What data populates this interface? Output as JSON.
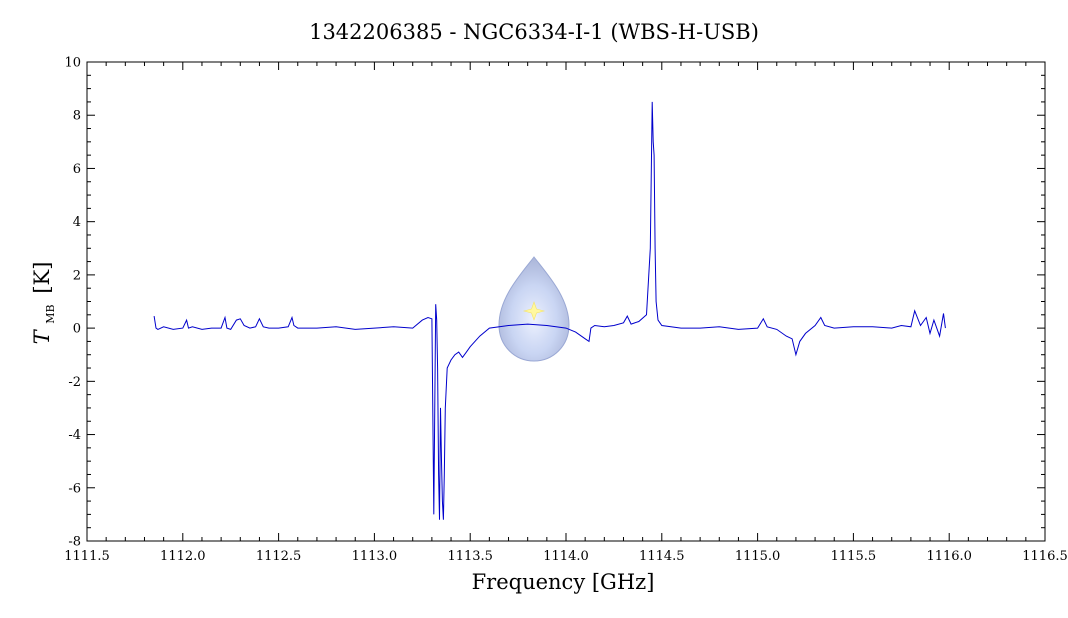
{
  "chart_data": {
    "type": "line",
    "title": "1342206385 - NGC6334-I-1 (WBS-H-USB)",
    "xlabel": "Frequency [GHz]",
    "ylabel_main": "T",
    "ylabel_sub": "MB",
    "ylabel_unit": "[K]",
    "xlim": [
      1111.5,
      1116.5
    ],
    "ylim": [
      -8,
      10
    ],
    "x_ticks": [
      "1111.5",
      "1112.0",
      "1112.5",
      "1113.0",
      "1113.5",
      "1114.0",
      "1114.5",
      "1115.0",
      "1115.5",
      "1116.0",
      "1116.5"
    ],
    "y_ticks": [
      "-8",
      "-6",
      "-4",
      "-2",
      "0",
      "2",
      "4",
      "6",
      "8",
      "10"
    ],
    "grid": false,
    "line_color": "#0000cc",
    "series": [
      {
        "x": [
          1111.85,
          1111.86,
          1111.87,
          1111.9,
          1111.95,
          1112.0,
          1112.02,
          1112.03,
          1112.05,
          1112.1,
          1112.15,
          1112.2,
          1112.22,
          1112.23,
          1112.25,
          1112.28,
          1112.3,
          1112.32,
          1112.35,
          1112.38,
          1112.4,
          1112.42,
          1112.45,
          1112.5,
          1112.55,
          1112.57,
          1112.58,
          1112.6,
          1112.7,
          1112.8,
          1112.9,
          1113.0,
          1113.1,
          1113.2,
          1113.25,
          1113.28,
          1113.3,
          1113.31,
          1113.32,
          1113.325,
          1113.33,
          1113.335,
          1113.34,
          1113.345,
          1113.35,
          1113.355,
          1113.36,
          1113.365,
          1113.37,
          1113.38,
          1113.4,
          1113.42,
          1113.44,
          1113.46,
          1113.48,
          1113.5,
          1113.55,
          1113.6,
          1113.7,
          1113.8,
          1113.9,
          1114.0,
          1114.05,
          1114.1,
          1114.12,
          1114.13,
          1114.15,
          1114.2,
          1114.25,
          1114.3,
          1114.32,
          1114.34,
          1114.38,
          1114.42,
          1114.44,
          1114.45,
          1114.455,
          1114.46,
          1114.465,
          1114.47,
          1114.48,
          1114.5,
          1114.6,
          1114.7,
          1114.8,
          1114.9,
          1115.0,
          1115.03,
          1115.05,
          1115.1,
          1115.15,
          1115.18,
          1115.2,
          1115.22,
          1115.25,
          1115.3,
          1115.33,
          1115.35,
          1115.4,
          1115.5,
          1115.6,
          1115.7,
          1115.75,
          1115.8,
          1115.82,
          1115.85,
          1115.88,
          1115.9,
          1115.92,
          1115.95,
          1115.97,
          1115.98
        ],
        "y": [
          0.45,
          0.0,
          -0.05,
          0.05,
          -0.05,
          0.0,
          0.3,
          0.0,
          0.05,
          -0.05,
          0.0,
          0.0,
          0.4,
          0.0,
          -0.05,
          0.3,
          0.35,
          0.1,
          0.0,
          0.05,
          0.35,
          0.05,
          0.0,
          0.0,
          0.05,
          0.4,
          0.1,
          0.0,
          0.0,
          0.05,
          -0.05,
          0.0,
          0.05,
          0.0,
          0.3,
          0.4,
          0.35,
          -7.0,
          0.9,
          0.3,
          -1.5,
          -5.5,
          -7.2,
          -3.0,
          -5.0,
          -6.5,
          -7.2,
          -5.5,
          -3.0,
          -1.5,
          -1.2,
          -1.0,
          -0.9,
          -1.1,
          -0.9,
          -0.7,
          -0.3,
          0.0,
          0.1,
          0.15,
          0.1,
          0.0,
          -0.15,
          -0.4,
          -0.5,
          0.0,
          0.1,
          0.05,
          0.1,
          0.2,
          0.45,
          0.15,
          0.25,
          0.5,
          3.0,
          8.5,
          7.0,
          6.5,
          3.0,
          1.0,
          0.3,
          0.1,
          0.0,
          0.0,
          0.05,
          -0.05,
          0.0,
          0.35,
          0.05,
          -0.05,
          -0.3,
          -0.4,
          -1.0,
          -0.5,
          -0.2,
          0.1,
          0.4,
          0.1,
          0.0,
          0.05,
          0.05,
          0.0,
          0.1,
          0.05,
          0.65,
          0.1,
          0.4,
          -0.2,
          0.3,
          -0.3,
          0.55,
          0.0
        ]
      }
    ]
  },
  "watermark": {
    "colors": {
      "outer": "#a9b7dd",
      "inner": "#eef2ff",
      "star": "#fff8a0"
    }
  }
}
